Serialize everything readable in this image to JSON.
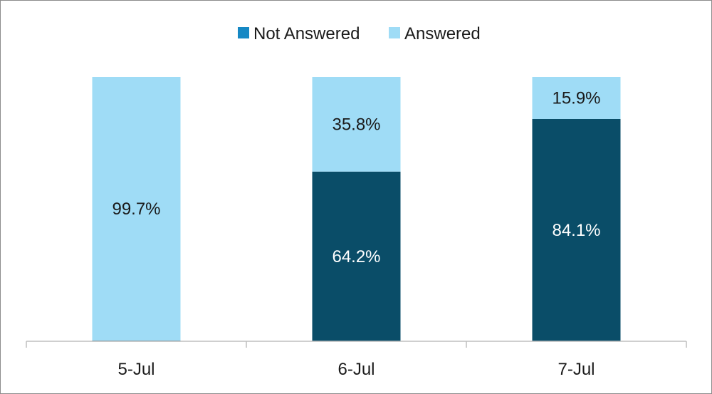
{
  "chart_data": {
    "type": "bar",
    "stacked": true,
    "percent_stacked": true,
    "categories": [
      "5-Jul",
      "6-Jul",
      "7-Jul"
    ],
    "series": [
      {
        "name": "Not Answered",
        "values": [
          0.3,
          64.2,
          84.1
        ],
        "labels": [
          "",
          "64.2%",
          "84.1%"
        ],
        "color": "#0a4d68",
        "legend_color": "#1688c4",
        "label_color": "#ffffff"
      },
      {
        "name": "Answered",
        "values": [
          99.7,
          35.8,
          15.9
        ],
        "labels": [
          "99.7%",
          "35.8%",
          "15.9%"
        ],
        "color": "#9fdcf6",
        "legend_color": "#9fdcf6",
        "label_color": "#1a1a1a"
      }
    ],
    "ylim": [
      0,
      100
    ],
    "title": "",
    "xlabel": "",
    "ylabel": "",
    "legend": "top-center",
    "grid": false
  }
}
